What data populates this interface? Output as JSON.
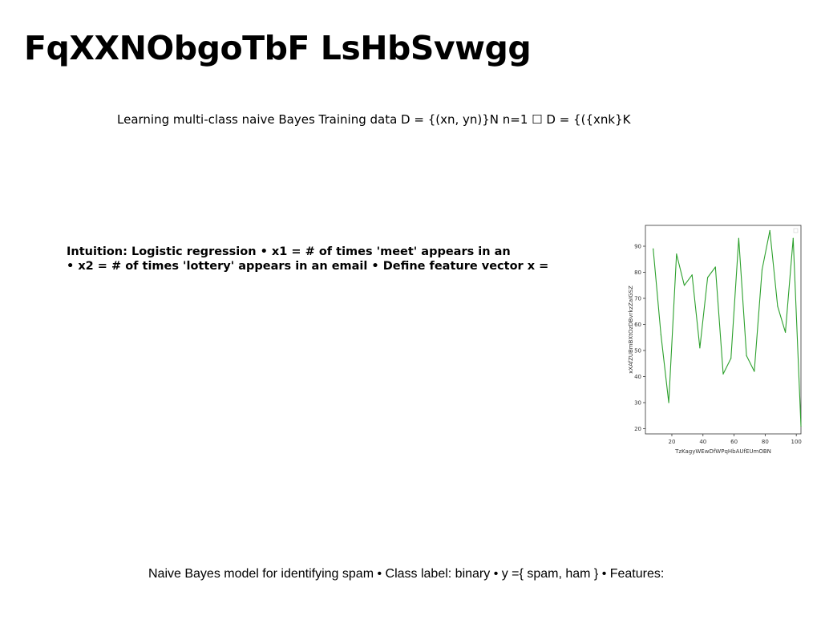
{
  "slide": {
    "title": "FqXXNObgoTbF LsHbSvwgg",
    "subtitle": "Learning multi-class naive Bayes Training data D = {(xn, yn)}N n=1 ☐ D = {({xnk}K",
    "intuition_line1": "Intuition: Logistic regression • x1 = # of times 'meet' appears in an",
    "intuition_line2": "• x2 = # of times 'lottery' appears in an email • Define feature vector x =",
    "footer": "Naive Bayes model for identifying spam • Class label: binary • y ={ spam, ham } • Features:"
  },
  "chart_data": {
    "type": "line",
    "xlabel": "TzKagyWEwDfWPqHbAUfEUmOBN",
    "ylabel": "xXAfZUBmBXtOzDBvrkzZaIGSZ",
    "xlim": [
      3,
      103
    ],
    "ylim": [
      18,
      98
    ],
    "xticks": [
      20,
      40,
      60,
      80,
      100
    ],
    "yticks": [
      20,
      30,
      40,
      50,
      60,
      70,
      80,
      90
    ],
    "grid": false,
    "line_color": "#2ca02c",
    "series": [
      {
        "x": [
          8,
          13,
          18,
          23,
          28,
          33,
          38,
          43,
          48,
          53,
          58,
          63,
          68,
          73,
          78,
          83,
          88,
          93,
          98,
          103
        ],
        "values": [
          89,
          56,
          30,
          87,
          75,
          79,
          51,
          78,
          82,
          41,
          47,
          93,
          48,
          42,
          81,
          96,
          67,
          57,
          93,
          21
        ]
      }
    ]
  }
}
